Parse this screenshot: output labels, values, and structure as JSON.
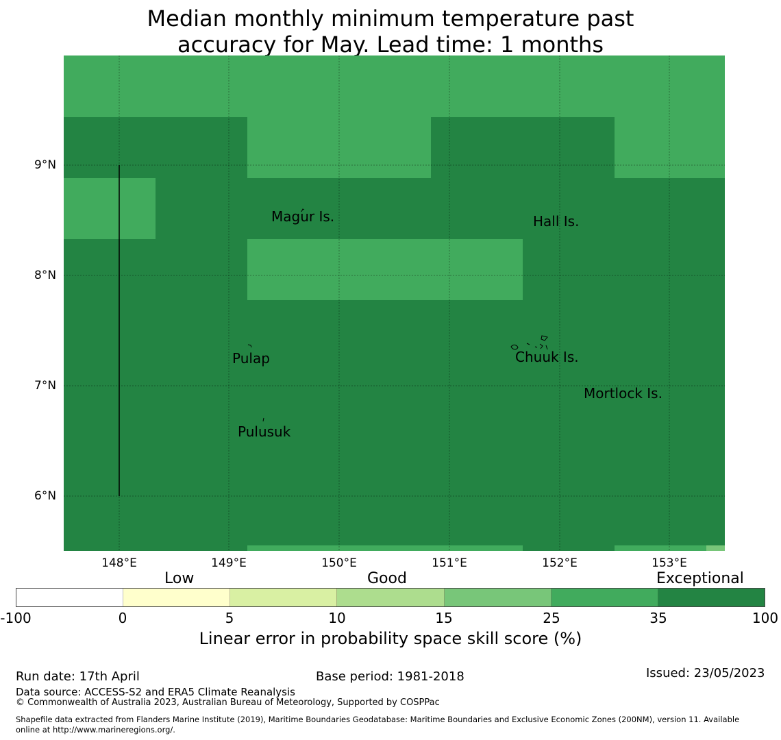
{
  "title_line1": "Median monthly minimum temperature past",
  "title_line2": "accuracy for May. Lead time: 1 months",
  "lat_labels": [
    "9°N",
    "8°N",
    "7°N",
    "6°N"
  ],
  "lon_labels": [
    "148°E",
    "149°E",
    "150°E",
    "151°E",
    "152°E",
    "153°E"
  ],
  "places": {
    "magur": "Magur Is.",
    "hall": "Hall Is.",
    "pulap": "Pulap",
    "chuuk": "Chuuk Is.",
    "mortlock": "Mortlock Is.",
    "pulusuk": "Pulusuk"
  },
  "legend": {
    "categories": [
      "Low",
      "Good",
      "Exceptional"
    ],
    "ticks": [
      "-100",
      "0",
      "5",
      "10",
      "15",
      "25",
      "35",
      "100"
    ],
    "colors": [
      "#ffffff",
      "#ffffcc",
      "#d9f0a3",
      "#addd8e",
      "#78c679",
      "#41ab5d",
      "#238443"
    ],
    "label": "Linear error in probability space skill score (%)"
  },
  "colors": {
    "exceptional": "#238443",
    "good_high": "#41ab5d",
    "good_mid": "#78c679"
  },
  "footer": {
    "run_date": "Run date: 17th April",
    "base_period": "Base period: 1981-2018",
    "issued": "Issued: 23/05/2023",
    "data_source": "Data source: ACCESS-S2 and ERA5 Climate Reanalysis",
    "copyright": "© Commonwealth of Australia 2023, Australian Bureau of Meteorology, Supported by COSPPac",
    "shapefile_1": "Shapefile data extracted from Flanders Marine Institute (2019), Maritime Boundaries Geodatabase: Maritime Boundaries and Exclusive Economic Zones (200NM), version 11. Available",
    "shapefile_2": "online at http://www.marineregions.org/."
  }
}
